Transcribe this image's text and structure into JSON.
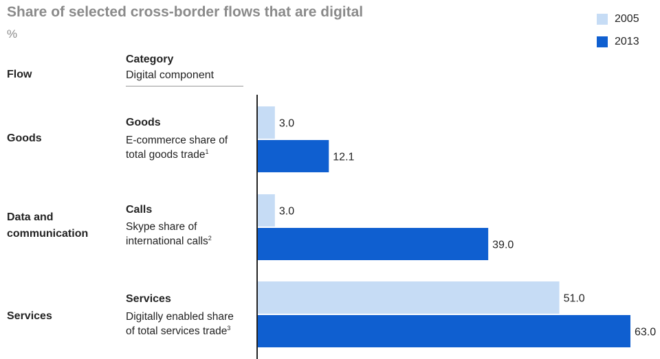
{
  "title": "Share of selected cross-border flows that are digital",
  "subtitle": "%",
  "header": {
    "flow": "Flow",
    "category": "Category",
    "digital_component": "Digital component"
  },
  "rows": [
    {
      "flow": "Goods",
      "category": "Goods",
      "description_line1": "E-commerce share of",
      "description_line2": "total goods trade",
      "footnote": "1"
    },
    {
      "flow_line1": "Data and",
      "flow_line2": "communication",
      "category": "Calls",
      "description_line1": "Skype share of",
      "description_line2": "international calls",
      "footnote": "2"
    },
    {
      "flow": "Services",
      "category": "Services",
      "description_line1": "Digitally enabled share",
      "description_line2": "of total services trade",
      "footnote": "3"
    }
  ],
  "legend": [
    {
      "label": "2005",
      "color": "#c6dcf5"
    },
    {
      "label": "2013",
      "color": "#0f5fd0"
    }
  ],
  "chart_data": {
    "type": "bar",
    "orientation": "horizontal",
    "title": "Share of selected cross-border flows that are digital",
    "ylabel": "%",
    "categories": [
      "Goods",
      "Calls",
      "Services"
    ],
    "series": [
      {
        "name": "2005",
        "values": [
          3.0,
          3.0,
          51.0
        ],
        "color": "#c6dcf5"
      },
      {
        "name": "2013",
        "values": [
          12.1,
          39.0,
          63.0
        ],
        "color": "#0f5fd0"
      }
    ],
    "data_labels": [
      [
        "3.0",
        "3.0",
        "51.0"
      ],
      [
        "12.1",
        "39.0",
        "63.0"
      ]
    ],
    "xlim": [
      0,
      63.0
    ],
    "legend_position": "top-right",
    "grid": false
  }
}
